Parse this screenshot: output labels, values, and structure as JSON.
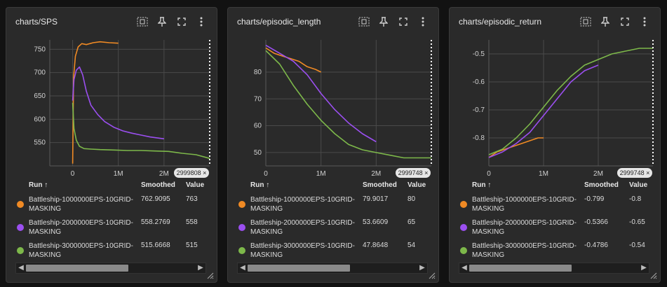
{
  "cards": [
    {
      "title": "charts/SPS",
      "badge": "2999808 ×",
      "run_label": "Run ↑",
      "smoothed_label": "Smoothed",
      "value_label": "Value",
      "rows": [
        {
          "name": "Battleship-1000000EPS-10GRID-MASKING",
          "smoothed": "762.9095",
          "value": "763",
          "color": "#f08a24"
        },
        {
          "name": "Battleship-2000000EPS-10GRID-MASKING",
          "smoothed": "558.2769",
          "value": "558",
          "color": "#9b4ff0"
        },
        {
          "name": "Battleship-3000000EPS-10GRID-MASKING",
          "smoothed": "515.6668",
          "value": "515",
          "color": "#7db84a"
        }
      ]
    },
    {
      "title": "charts/episodic_length",
      "badge": "2999748 ×",
      "run_label": "Run ↑",
      "smoothed_label": "Smoothed",
      "value_label": "Value",
      "rows": [
        {
          "name": "Battleship-1000000EPS-10GRID-MASKING",
          "smoothed": "79.9017",
          "value": "80",
          "color": "#f08a24"
        },
        {
          "name": "Battleship-2000000EPS-10GRID-MASKING",
          "smoothed": "53.6609",
          "value": "65",
          "color": "#9b4ff0"
        },
        {
          "name": "Battleship-3000000EPS-10GRID-MASKING",
          "smoothed": "47.8648",
          "value": "54",
          "color": "#7db84a"
        }
      ]
    },
    {
      "title": "charts/episodic_return",
      "badge": "2999748 ×",
      "run_label": "Run ↑",
      "smoothed_label": "Smoothed",
      "value_label": "Value",
      "rows": [
        {
          "name": "Battleship-1000000EPS-10GRID-MASKING",
          "smoothed": "-0.799",
          "value": "-0.8",
          "color": "#f08a24"
        },
        {
          "name": "Battleship-2000000EPS-10GRID-MASKING",
          "smoothed": "-0.5366",
          "value": "-0.65",
          "color": "#9b4ff0"
        },
        {
          "name": "Battleship-3000000EPS-10GRID-MASKING",
          "smoothed": "-0.4786",
          "value": "-0.54",
          "color": "#7db84a"
        }
      ]
    }
  ],
  "icons": [
    "fit-domain-icon",
    "pin-icon",
    "fullscreen-icon",
    "more-vert-icon"
  ],
  "chart_data": [
    {
      "type": "line",
      "title": "charts/SPS",
      "xlim": [
        -500000,
        3000000
      ],
      "ylim": [
        500,
        770
      ],
      "xticks": [
        0,
        1000000,
        2000000
      ],
      "xtick_labels": [
        "0",
        "1M",
        "2M"
      ],
      "yticks": [
        550,
        600,
        650,
        700,
        750
      ],
      "ytick_labels": [
        "550",
        "600",
        "650",
        "700",
        "750"
      ],
      "marker_x": 2999808,
      "grid": true,
      "series": [
        {
          "name": "Battleship-1000000EPS-10GRID-MASKING",
          "color": "#f08a24",
          "x": [
            0,
            20000,
            60000,
            120000,
            200000,
            300000,
            450000,
            600000,
            800000,
            1000000
          ],
          "y": [
            505,
            690,
            735,
            755,
            762,
            760,
            764,
            766,
            764,
            763
          ]
        },
        {
          "name": "Battleship-2000000EPS-10GRID-MASKING",
          "color": "#9b4ff0",
          "x": [
            0,
            30000,
            80000,
            150000,
            220000,
            300000,
            400000,
            550000,
            700000,
            900000,
            1100000,
            1300000,
            1500000,
            1700000,
            2000000
          ],
          "y": [
            640,
            685,
            705,
            712,
            695,
            660,
            630,
            610,
            595,
            583,
            575,
            570,
            566,
            562,
            558
          ]
        },
        {
          "name": "Battleship-3000000EPS-10GRID-MASKING",
          "color": "#7db84a",
          "x": [
            0,
            30000,
            80000,
            150000,
            250000,
            400000,
            600000,
            900000,
            1200000,
            1500000,
            1800000,
            2100000,
            2400000,
            2700000,
            3000000
          ],
          "y": [
            635,
            580,
            555,
            542,
            537,
            536,
            535,
            534,
            533,
            533,
            532,
            531,
            527,
            524,
            516
          ]
        }
      ]
    },
    {
      "type": "line",
      "title": "charts/episodic_length",
      "xlim": [
        0,
        3000000
      ],
      "ylim": [
        45,
        92
      ],
      "xticks": [
        0,
        1000000,
        2000000
      ],
      "xtick_labels": [
        "0",
        "1M",
        "2M"
      ],
      "yticks": [
        50,
        60,
        70,
        80
      ],
      "ytick_labels": [
        "50",
        "60",
        "70",
        "80"
      ],
      "marker_x": 2999748,
      "grid": true,
      "series": [
        {
          "name": "Battleship-1000000EPS-10GRID-MASKING",
          "color": "#f08a24",
          "x": [
            0,
            150000,
            300000,
            450000,
            600000,
            750000,
            900000,
            1000000
          ],
          "y": [
            89,
            87,
            86,
            85,
            84,
            82,
            81,
            80
          ]
        },
        {
          "name": "Battleship-2000000EPS-10GRID-MASKING",
          "color": "#9b4ff0",
          "x": [
            0,
            250000,
            500000,
            750000,
            1000000,
            1250000,
            1500000,
            1750000,
            2000000
          ],
          "y": [
            90,
            87,
            84,
            79,
            72,
            66,
            61,
            57,
            54
          ]
        },
        {
          "name": "Battleship-3000000EPS-10GRID-MASKING",
          "color": "#7db84a",
          "x": [
            0,
            250000,
            500000,
            750000,
            1000000,
            1250000,
            1500000,
            1750000,
            2000000,
            2250000,
            2500000,
            2750000,
            3000000
          ],
          "y": [
            88,
            83,
            75,
            68,
            62,
            57,
            53,
            51,
            50,
            49,
            48,
            48,
            48
          ]
        }
      ]
    },
    {
      "type": "line",
      "title": "charts/episodic_return",
      "xlim": [
        0,
        3000000
      ],
      "ylim": [
        -0.9,
        -0.45
      ],
      "xticks": [
        0,
        1000000,
        2000000
      ],
      "xtick_labels": [
        "0",
        "1M",
        "2M"
      ],
      "yticks": [
        -0.8,
        -0.7,
        -0.6,
        -0.5
      ],
      "ytick_labels": [
        "-0.8",
        "-0.7",
        "-0.6",
        "-0.5"
      ],
      "marker_x": 2999748,
      "grid": true,
      "series": [
        {
          "name": "Battleship-1000000EPS-10GRID-MASKING",
          "color": "#f08a24",
          "x": [
            0,
            150000,
            300000,
            450000,
            600000,
            750000,
            900000,
            1000000
          ],
          "y": [
            -0.87,
            -0.85,
            -0.84,
            -0.83,
            -0.82,
            -0.81,
            -0.8,
            -0.8
          ]
        },
        {
          "name": "Battleship-2000000EPS-10GRID-MASKING",
          "color": "#9b4ff0",
          "x": [
            0,
            250000,
            500000,
            750000,
            1000000,
            1250000,
            1500000,
            1750000,
            2000000
          ],
          "y": [
            -0.87,
            -0.85,
            -0.82,
            -0.78,
            -0.72,
            -0.66,
            -0.6,
            -0.56,
            -0.54
          ]
        },
        {
          "name": "Battleship-3000000EPS-10GRID-MASKING",
          "color": "#7db84a",
          "x": [
            0,
            250000,
            500000,
            750000,
            1000000,
            1250000,
            1500000,
            1750000,
            2000000,
            2250000,
            2500000,
            2750000,
            3000000
          ],
          "y": [
            -0.86,
            -0.84,
            -0.8,
            -0.75,
            -0.69,
            -0.63,
            -0.58,
            -0.54,
            -0.52,
            -0.5,
            -0.49,
            -0.48,
            -0.48
          ]
        }
      ]
    }
  ]
}
